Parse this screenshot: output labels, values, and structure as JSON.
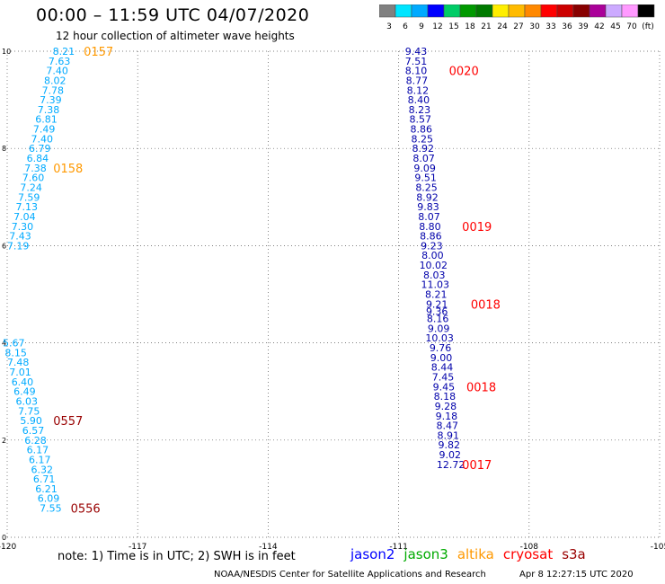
{
  "header": {
    "title": "00:00 – 11:59 UTC 04/07/2020",
    "subtitle": "12 hour collection of altimeter wave heights"
  },
  "colorbar": {
    "labels": [
      "3",
      "6",
      "9",
      "12",
      "15",
      "18",
      "21",
      "24",
      "27",
      "30",
      "33",
      "36",
      "39",
      "42",
      "45",
      "70",
      "(ft)"
    ],
    "colors": [
      "#808080",
      "#00e5ff",
      "#00aaff",
      "#0000ff",
      "#00cc66",
      "#009900",
      "#007a00",
      "#ffee00",
      "#ffbb00",
      "#ff8800",
      "#ff0000",
      "#cc0000",
      "#880000",
      "#aa0099",
      "#ccaaff",
      "#ff99ff",
      "#000000"
    ]
  },
  "note": "note: 1) Time is in UTC; 2) SWH is in feet",
  "legend": [
    {
      "name": "jason2",
      "color": "#0000ff"
    },
    {
      "name": "jason3",
      "color": "#00aa00"
    },
    {
      "name": "altika",
      "color": "#ff9900"
    },
    {
      "name": "cryosat",
      "color": "#ff0000"
    },
    {
      "name": "s3a",
      "color": "#990000"
    }
  ],
  "footer": {
    "credit": "NOAA/NESDIS Center for Satellite Applications and Research",
    "timestamp": "Apr  8 12:27:15 UTC 2020"
  },
  "chart_data": {
    "type": "scatter",
    "title": "00:00 – 11:59 UTC 04/07/2020",
    "xlim": [
      -120,
      -105
    ],
    "ylim": [
      0,
      10
    ],
    "xticks": [
      "-120",
      "-117",
      "-114",
      "-111",
      "-108",
      "-105"
    ],
    "yticks": [
      "0",
      "2",
      "4",
      "6",
      "8",
      "10"
    ],
    "grid": true,
    "series": [
      {
        "name": "track-left",
        "color": "#00aaff",
        "points": [
          {
            "x": -118.7,
            "y": 10.0,
            "v": "8.21"
          },
          {
            "x": -118.8,
            "y": 9.8,
            "v": "7.63"
          },
          {
            "x": -118.85,
            "y": 9.6,
            "v": "7.40"
          },
          {
            "x": -118.9,
            "y": 9.4,
            "v": "8.02"
          },
          {
            "x": -118.95,
            "y": 9.2,
            "v": "7.78"
          },
          {
            "x": -119.0,
            "y": 9.0,
            "v": "7.39"
          },
          {
            "x": -119.05,
            "y": 8.8,
            "v": "7.38"
          },
          {
            "x": -119.1,
            "y": 8.6,
            "v": "6.81"
          },
          {
            "x": -119.15,
            "y": 8.4,
            "v": "7.49"
          },
          {
            "x": -119.2,
            "y": 8.2,
            "v": "7.40"
          },
          {
            "x": -119.25,
            "y": 8.0,
            "v": "6.79"
          },
          {
            "x": -119.3,
            "y": 7.8,
            "v": "6.84"
          },
          {
            "x": -119.35,
            "y": 7.6,
            "v": "7.38"
          },
          {
            "x": -119.4,
            "y": 7.4,
            "v": "7.60"
          },
          {
            "x": -119.45,
            "y": 7.2,
            "v": "7.24"
          },
          {
            "x": -119.5,
            "y": 7.0,
            "v": "7.59"
          },
          {
            "x": -119.55,
            "y": 6.8,
            "v": "7.13"
          },
          {
            "x": -119.6,
            "y": 6.6,
            "v": "7.04"
          },
          {
            "x": -119.65,
            "y": 6.4,
            "v": "7.30"
          },
          {
            "x": -119.7,
            "y": 6.2,
            "v": "7.43"
          },
          {
            "x": -119.75,
            "y": 6.0,
            "v": "7.19"
          },
          {
            "x": -119.85,
            "y": 4.0,
            "v": "5.67"
          },
          {
            "x": -119.8,
            "y": 3.8,
            "v": "8.15"
          },
          {
            "x": -119.75,
            "y": 3.6,
            "v": "7.48"
          },
          {
            "x": -119.7,
            "y": 3.4,
            "v": "7.01"
          },
          {
            "x": -119.65,
            "y": 3.2,
            "v": "6.40"
          },
          {
            "x": -119.6,
            "y": 3.0,
            "v": "6.49"
          },
          {
            "x": -119.55,
            "y": 2.8,
            "v": "6.03"
          },
          {
            "x": -119.5,
            "y": 2.6,
            "v": "7.75"
          },
          {
            "x": -119.45,
            "y": 2.4,
            "v": "5.90"
          },
          {
            "x": -119.4,
            "y": 2.2,
            "v": "6.57"
          },
          {
            "x": -119.35,
            "y": 2.0,
            "v": "6.28"
          },
          {
            "x": -119.3,
            "y": 1.8,
            "v": "6.17"
          },
          {
            "x": -119.25,
            "y": 1.6,
            "v": "6.17"
          },
          {
            "x": -119.2,
            "y": 1.4,
            "v": "6.32"
          },
          {
            "x": -119.15,
            "y": 1.2,
            "v": "6.71"
          },
          {
            "x": -119.1,
            "y": 1.0,
            "v": "6.21"
          },
          {
            "x": -119.05,
            "y": 0.8,
            "v": "6.09"
          },
          {
            "x": -119.0,
            "y": 0.6,
            "v": "7.55"
          }
        ]
      },
      {
        "name": "track-right",
        "color": "#0000aa",
        "points": [
          {
            "x": -110.6,
            "y": 10.0,
            "v": "9.43"
          },
          {
            "x": -110.6,
            "y": 9.8,
            "v": "7.51"
          },
          {
            "x": -110.6,
            "y": 9.6,
            "v": "8.10"
          },
          {
            "x": -110.58,
            "y": 9.4,
            "v": "8.77"
          },
          {
            "x": -110.56,
            "y": 9.2,
            "v": "8.12"
          },
          {
            "x": -110.54,
            "y": 9.0,
            "v": "8.40"
          },
          {
            "x": -110.52,
            "y": 8.8,
            "v": "8.23"
          },
          {
            "x": -110.5,
            "y": 8.6,
            "v": "8.57"
          },
          {
            "x": -110.48,
            "y": 8.4,
            "v": "8.86"
          },
          {
            "x": -110.46,
            "y": 8.2,
            "v": "8.25"
          },
          {
            "x": -110.44,
            "y": 8.0,
            "v": "8.92"
          },
          {
            "x": -110.42,
            "y": 7.8,
            "v": "8.07"
          },
          {
            "x": -110.4,
            "y": 7.6,
            "v": "9.09"
          },
          {
            "x": -110.38,
            "y": 7.4,
            "v": "9.51"
          },
          {
            "x": -110.36,
            "y": 7.2,
            "v": "8.25"
          },
          {
            "x": -110.34,
            "y": 7.0,
            "v": "8.92"
          },
          {
            "x": -110.32,
            "y": 6.8,
            "v": "9.83"
          },
          {
            "x": -110.3,
            "y": 6.6,
            "v": "8.07"
          },
          {
            "x": -110.28,
            "y": 6.4,
            "v": "8.80"
          },
          {
            "x": -110.26,
            "y": 6.2,
            "v": "8.86"
          },
          {
            "x": -110.24,
            "y": 6.0,
            "v": "9.23"
          },
          {
            "x": -110.22,
            "y": 5.8,
            "v": "8.00"
          },
          {
            "x": -110.2,
            "y": 5.6,
            "v": "10.02"
          },
          {
            "x": -110.18,
            "y": 5.4,
            "v": "8.03"
          },
          {
            "x": -110.16,
            "y": 5.2,
            "v": "11.03"
          },
          {
            "x": -110.14,
            "y": 5.0,
            "v": "8.21"
          },
          {
            "x": -110.12,
            "y": 4.8,
            "v": "9.21"
          },
          {
            "x": -110.12,
            "y": 4.65,
            "v": "9.36"
          },
          {
            "x": -110.1,
            "y": 4.5,
            "v": "8.16"
          },
          {
            "x": -110.08,
            "y": 4.3,
            "v": "9.09"
          },
          {
            "x": -110.06,
            "y": 4.1,
            "v": "10.03"
          },
          {
            "x": -110.04,
            "y": 3.9,
            "v": "9.76"
          },
          {
            "x": -110.02,
            "y": 3.7,
            "v": "9.00"
          },
          {
            "x": -110.0,
            "y": 3.5,
            "v": "8.44"
          },
          {
            "x": -109.98,
            "y": 3.3,
            "v": "7.45"
          },
          {
            "x": -109.96,
            "y": 3.1,
            "v": "9.45"
          },
          {
            "x": -109.94,
            "y": 2.9,
            "v": "8.18"
          },
          {
            "x": -109.92,
            "y": 2.7,
            "v": "9.28"
          },
          {
            "x": -109.9,
            "y": 2.5,
            "v": "9.18"
          },
          {
            "x": -109.88,
            "y": 2.3,
            "v": "8.47"
          },
          {
            "x": -109.86,
            "y": 2.1,
            "v": "8.91"
          },
          {
            "x": -109.84,
            "y": 1.9,
            "v": "9.82"
          },
          {
            "x": -109.82,
            "y": 1.7,
            "v": "9.02"
          },
          {
            "x": -109.8,
            "y": 1.5,
            "v": "12.72"
          }
        ]
      }
    ],
    "annotations": [
      {
        "x": -117.9,
        "y": 10.0,
        "text": "0157",
        "color": "#ff9900"
      },
      {
        "x": -118.6,
        "y": 7.6,
        "text": "0158",
        "color": "#ff9900"
      },
      {
        "x": -109.5,
        "y": 9.6,
        "text": "0020",
        "color": "#ff0000"
      },
      {
        "x": -109.2,
        "y": 6.4,
        "text": "0019",
        "color": "#ff0000"
      },
      {
        "x": -109.0,
        "y": 4.8,
        "text": "0018",
        "color": "#ff0000"
      },
      {
        "x": -109.1,
        "y": 3.1,
        "text": "0018",
        "color": "#ff0000"
      },
      {
        "x": -118.6,
        "y": 2.4,
        "text": "0557",
        "color": "#990000"
      },
      {
        "x": -118.2,
        "y": 0.6,
        "text": "0556",
        "color": "#990000"
      },
      {
        "x": -109.2,
        "y": 1.5,
        "text": "0017",
        "color": "#ff0000"
      }
    ]
  }
}
